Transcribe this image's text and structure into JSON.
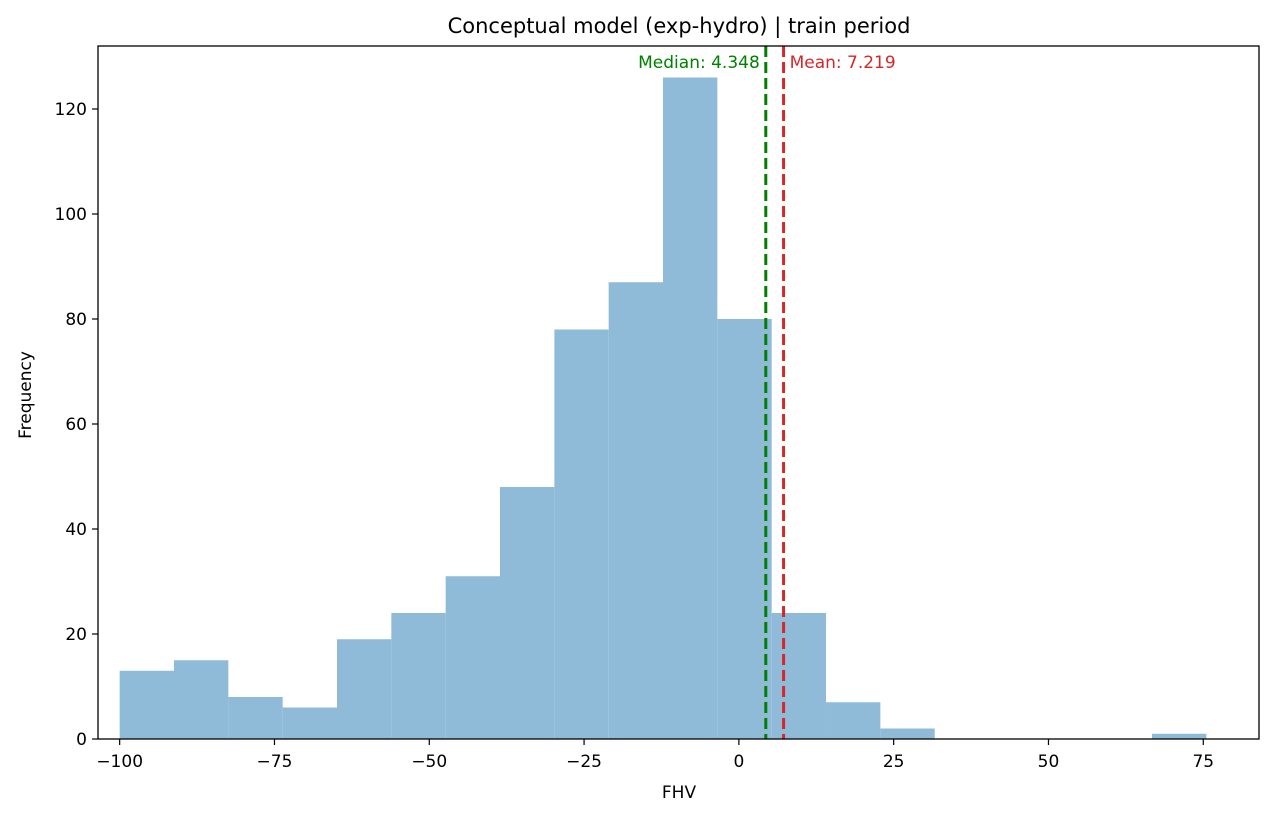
{
  "chart_data": {
    "type": "histogram",
    "title": "Conceptual model (exp-hydro) | train period",
    "xlabel": "FHV",
    "ylabel": "Frequency",
    "xlim": [
      -103.5,
      84.0
    ],
    "ylim": [
      0,
      132
    ],
    "xticks": [
      -100,
      -75,
      -50,
      -25,
      0,
      25,
      50,
      75
    ],
    "xtick_labels": [
      "−100",
      "−75",
      "−50",
      "−25",
      "0",
      "25",
      "50",
      "75"
    ],
    "yticks": [
      0,
      20,
      40,
      60,
      80,
      100,
      120
    ],
    "ytick_labels": [
      "0",
      "20",
      "40",
      "60",
      "80",
      "100",
      "120"
    ],
    "bin_range": [
      -100,
      75.5
    ],
    "counts": [
      13,
      15,
      8,
      6,
      19,
      24,
      31,
      48,
      78,
      87,
      126,
      80,
      24,
      7,
      2,
      0,
      0,
      0,
      0,
      1
    ],
    "bar_color": "#8fbad8",
    "grid": false,
    "reference_lines": [
      {
        "label": "Median: 4.348",
        "value": 4.348,
        "color": "#008000",
        "side": "left"
      },
      {
        "label": "Mean: 7.219",
        "value": 7.219,
        "color": "#d62728",
        "side": "right"
      }
    ]
  }
}
